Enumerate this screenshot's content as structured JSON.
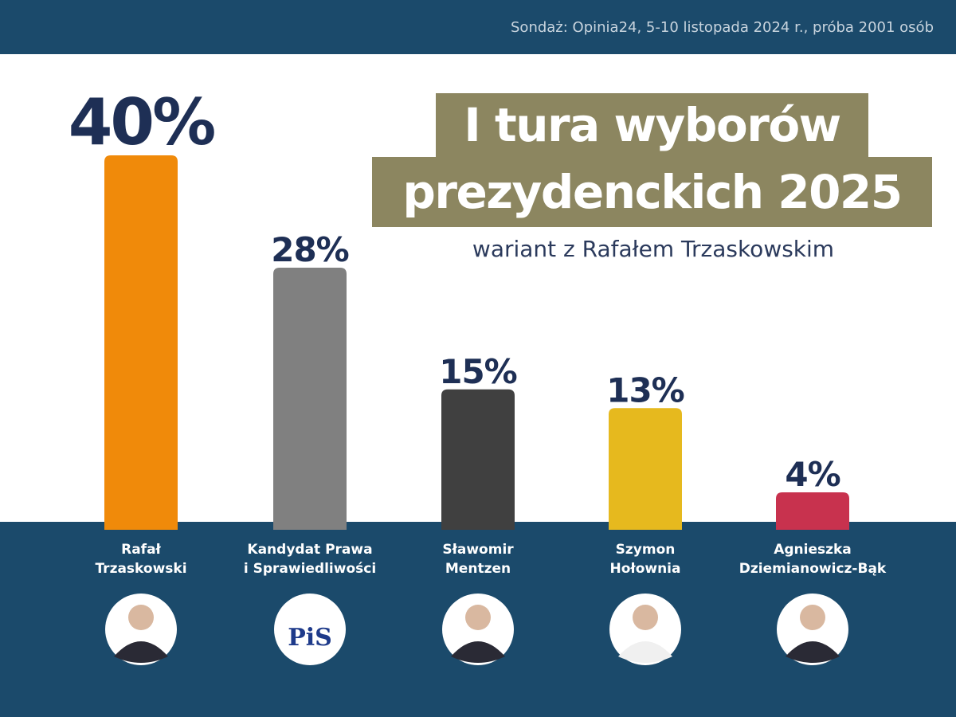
{
  "chart_data": {
    "type": "bar",
    "source": "Sondaż: Opinia24, 5-10 listopada 2024 r., próba 2001 osób",
    "title": [
      "I tura wyborów",
      "prezydenckich 2025"
    ],
    "subtitle": "wariant z Rafałem Trzaskowskim",
    "categories": [
      "Rafał\nTrzaskowski",
      "Kandydat Prawa\ni Sprawiedliwości",
      "Sławomir\nMentzen",
      "Szymon\nHołownia",
      "Agnieszka\nDziemianowicz-Bąk"
    ],
    "values": [
      40,
      28,
      15,
      13,
      4
    ],
    "value_labels": [
      "40%",
      "28%",
      "15%",
      "13%",
      "4%"
    ],
    "colors": [
      "#f08a0a",
      "#808080",
      "#404040",
      "#e6b91e",
      "#c8324e"
    ],
    "ylim": [
      0,
      40
    ],
    "logo_text": "PiS"
  }
}
